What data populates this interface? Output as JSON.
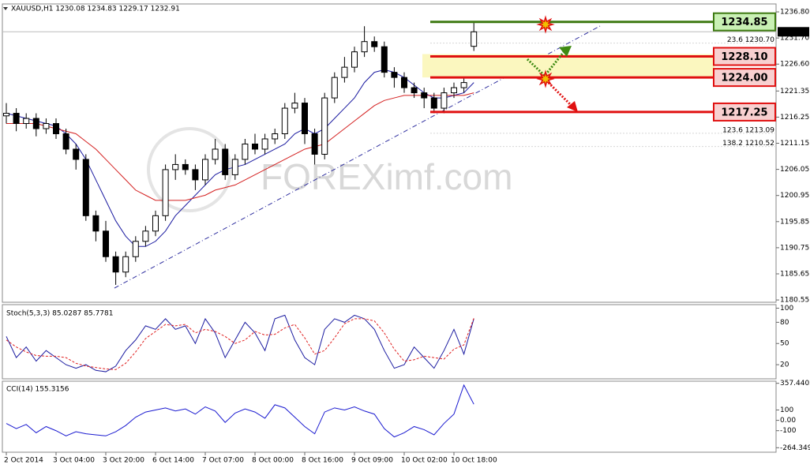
{
  "chart_data": [
    {
      "type": "candlestick",
      "title": "XAUUSD,H1 1230.08 1234.83 1229.17 1232.91",
      "watermark": "FOREXimf.com",
      "x": [
        "2 Oct 2014",
        null,
        null,
        null,
        null,
        "3 Oct 04:00",
        null,
        null,
        null,
        null,
        "3 Oct 20:00",
        null,
        null,
        null,
        null,
        "6 Oct 14:00",
        null,
        null,
        null,
        null,
        "7 Oct 07:00",
        null,
        null,
        null,
        null,
        "8 Oct 00:00",
        null,
        null,
        null,
        null,
        "8 Oct 16:00",
        null,
        null,
        null,
        null,
        "9 Oct 09:00",
        null,
        null,
        null,
        null,
        "10 Oct 02:00",
        null,
        null,
        null,
        null,
        "10 Oct 18:00",
        null,
        null
      ],
      "open": [
        1216.5,
        1217,
        1215,
        1216,
        1214,
        1215,
        1213,
        1210,
        1208,
        1197,
        1194,
        1189,
        1186,
        1189,
        1192,
        1194,
        1197,
        1206,
        1207,
        1206,
        1204,
        1208,
        1210,
        1205,
        1208,
        1211,
        1210,
        1212,
        1213,
        1218,
        1219,
        1213,
        1209,
        1220,
        1224,
        1226,
        1229,
        1231,
        1230,
        1225,
        1224,
        1222,
        1221,
        1220,
        1218,
        1221,
        1222,
        1230.08
      ],
      "high": [
        1219,
        1218,
        1217,
        1217,
        1216,
        1216,
        1214,
        1211,
        1209,
        1198,
        1196,
        1190,
        1190,
        1193,
        1195,
        1198,
        1207,
        1209,
        1208,
        1207,
        1209,
        1212,
        1211,
        1209,
        1212,
        1213,
        1213,
        1214,
        1219,
        1221,
        1220,
        1214,
        1221,
        1225,
        1228,
        1230,
        1234,
        1232,
        1231,
        1226,
        1225,
        1223,
        1222,
        1221,
        1222,
        1223,
        1224,
        1234.83
      ],
      "low": [
        1215,
        1213.5,
        1214,
        1212.5,
        1213,
        1212,
        1209,
        1206,
        1196,
        1192,
        1188,
        1183.5,
        1185,
        1188,
        1191,
        1193,
        1196,
        1204,
        1205,
        1202,
        1203,
        1207,
        1204,
        1204,
        1207,
        1209,
        1209,
        1211,
        1212,
        1217,
        1211,
        1207,
        1208,
        1219,
        1223,
        1225,
        1228,
        1229,
        1224,
        1222,
        1221,
        1220,
        1218,
        1217,
        1217,
        1220,
        1221,
        1229.17
      ],
      "close": [
        1217,
        1215,
        1216,
        1214,
        1215,
        1213,
        1210,
        1208,
        1197,
        1194,
        1189,
        1186,
        1189,
        1192,
        1194,
        1197,
        1206,
        1207,
        1206,
        1204,
        1208,
        1210,
        1205,
        1208,
        1211,
        1210,
        1212,
        1213,
        1218,
        1219,
        1213,
        1209,
        1220,
        1224,
        1226,
        1229,
        1231,
        1230,
        1225,
        1224,
        1222,
        1221,
        1220,
        1218,
        1221,
        1222,
        1223,
        1232.91
      ],
      "moving_averages": [
        {
          "color": "#1a1aa0",
          "values": [
            1217,
            1216.5,
            1216,
            1215.5,
            1215,
            1214.5,
            1213,
            1211,
            1208,
            1204,
            1200,
            1196,
            1193,
            1191,
            1191,
            1192,
            1194,
            1197,
            1199,
            1201,
            1203,
            1205,
            1206,
            1206.5,
            1207,
            1208,
            1209,
            1210,
            1211,
            1213,
            1214,
            1213,
            1214,
            1216,
            1218,
            1220,
            1223,
            1225,
            1225.5,
            1225,
            1224,
            1222.5,
            1221,
            1220,
            1220,
            1220.5,
            1221,
            1223
          ]
        },
        {
          "color": "#d42020",
          "values": [
            1215,
            1215,
            1215,
            1215,
            1214.5,
            1214,
            1213.5,
            1213,
            1211.5,
            1210,
            1208,
            1206,
            1204,
            1202,
            1201,
            1200,
            1200,
            1200,
            1200,
            1200.5,
            1201,
            1202,
            1202.5,
            1203,
            1204,
            1205,
            1206,
            1207,
            1208,
            1209,
            1210,
            1210.5,
            1211,
            1212.5,
            1214,
            1215.5,
            1217,
            1218.5,
            1219.5,
            1220,
            1220.5,
            1220.5,
            1220.5,
            1220.5,
            1220.5,
            1220.5,
            1220.5,
            1221
          ]
        }
      ],
      "ylim": [
        1180.1,
        1238.35
      ],
      "yticks": [
        {
          "value": 1236.8,
          "label": "1236.80"
        },
        {
          "value": 1231.7,
          "label": "1231.70"
        },
        {
          "value": 1226.6,
          "label": "1226.60"
        },
        {
          "value": 1221.35,
          "label": "1221.35"
        },
        {
          "value": 1216.25,
          "label": "1216.25"
        },
        {
          "value": 1211.15,
          "label": "1211.15"
        },
        {
          "value": 1206.05,
          "label": "1206.05"
        },
        {
          "value": 1200.95,
          "label": "1200.95"
        },
        {
          "value": 1195.85,
          "label": "1195.85"
        },
        {
          "value": 1190.75,
          "label": "1190.75"
        },
        {
          "value": 1185.65,
          "label": "1185.65"
        },
        {
          "value": 1180.55,
          "label": "1180.55"
        }
      ],
      "levels": [
        {
          "value": 1234.85,
          "label": "1234.85",
          "color": "#3e7a12",
          "fill": "#c9f0b4"
        },
        {
          "value": 1228.1,
          "label": "1228.10",
          "color": "#e01010",
          "fill": "#f8d0d0"
        },
        {
          "value": 1224,
          "label": "1224.00",
          "color": "#e01010",
          "fill": "#f8d0d0"
        },
        {
          "value": 1217.25,
          "label": "1217.25",
          "color": "#e01010",
          "fill": "#f8d0d0"
        }
      ],
      "fib_labels": [
        {
          "value": 1230.7,
          "label": "23.6  1230.70"
        },
        {
          "value": 1213.09,
          "label": "123.6  1213.09"
        },
        {
          "value": 1210.52,
          "label": "138.2  1210.52"
        }
      ],
      "current_price": {
        "value": 1232.91,
        "label": "1232.91"
      }
    },
    {
      "type": "stochastic",
      "title": "Stoch(5,3,3) 85.0287 85.7781",
      "series": [
        {
          "color": "#1a1aa0",
          "dash": false,
          "values": [
            60,
            30,
            45,
            25,
            40,
            30,
            20,
            15,
            20,
            12,
            10,
            18,
            40,
            55,
            75,
            70,
            85,
            70,
            75,
            50,
            85,
            65,
            30,
            55,
            80,
            65,
            40,
            85,
            90,
            55,
            30,
            20,
            70,
            85,
            80,
            90,
            85,
            70,
            40,
            15,
            20,
            45,
            30,
            15,
            40,
            70,
            35,
            85.0287
          ]
        },
        {
          "color": "#e02020",
          "dash": true,
          "values": [
            55,
            45,
            38,
            33,
            32,
            32,
            30,
            22,
            18,
            16,
            14,
            13,
            22,
            38,
            57,
            67,
            77,
            75,
            77,
            65,
            70,
            67,
            60,
            50,
            55,
            67,
            62,
            63,
            72,
            77,
            58,
            35,
            40,
            58,
            78,
            85,
            85,
            82,
            65,
            42,
            25,
            27,
            32,
            30,
            28,
            42,
            48,
            85.7781
          ]
        }
      ],
      "ylim": [
        0,
        105
      ],
      "yticks": [
        100,
        80,
        50,
        20
      ]
    },
    {
      "type": "cci",
      "title": "CCI(14) 155.3156",
      "series": [
        {
          "color": "#1a1ad0",
          "values": [
            -30,
            -80,
            -40,
            -120,
            -60,
            -100,
            -150,
            -110,
            -130,
            -140,
            -150,
            -110,
            -50,
            30,
            80,
            100,
            120,
            90,
            110,
            60,
            130,
            90,
            -20,
            70,
            110,
            80,
            20,
            150,
            120,
            30,
            -60,
            -130,
            80,
            120,
            100,
            130,
            90,
            60,
            -80,
            -160,
            -120,
            -60,
            -90,
            -140,
            -30,
            60,
            340,
            155.3156
          ]
        }
      ],
      "ylim": [
        -300,
        370
      ],
      "yticks": [
        357.4402,
        100,
        {
          "value": 0,
          "label": "0.00"
        },
        -100,
        -264.3497
      ]
    }
  ]
}
